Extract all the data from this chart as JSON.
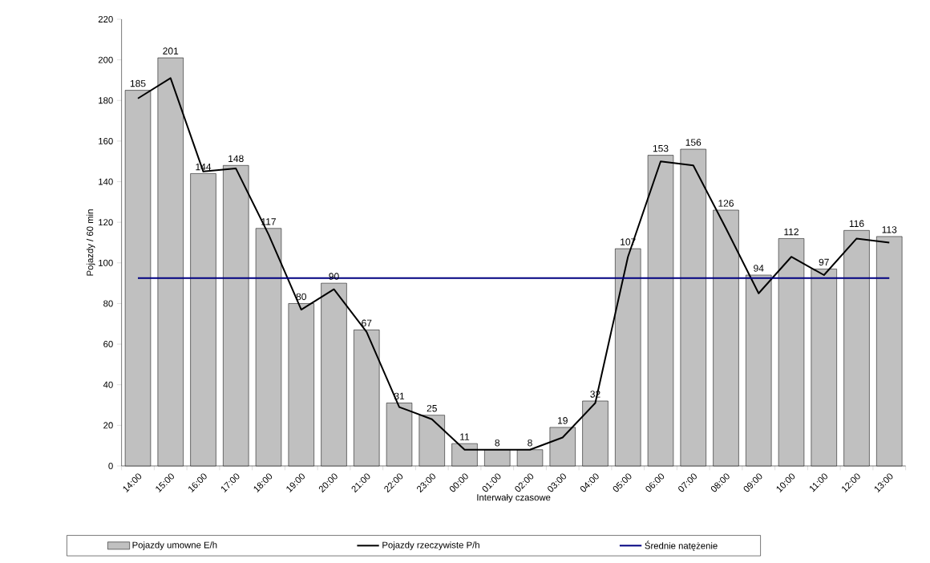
{
  "chart_data": {
    "type": "bar",
    "xlabel": "Interwały czasowe",
    "ylabel": "Pojazdy / 60 min",
    "categories": [
      "14:00",
      "15:00",
      "16:00",
      "17:00",
      "18:00",
      "19:00",
      "20:00",
      "21:00",
      "22:00",
      "23:00",
      "00:00",
      "01:00",
      "02:00",
      "03:00",
      "04:00",
      "05:00",
      "06:00",
      "07:00",
      "08:00",
      "09:00",
      "10:00",
      "11:00",
      "12:00",
      "13:00"
    ],
    "series": [
      {
        "name": "Pojazdy umowne E/h",
        "color": "#c0c0c0",
        "data_labels": true,
        "values": [
          185,
          201,
          144,
          148,
          117,
          80,
          90,
          67,
          31,
          25,
          11,
          8,
          8,
          19,
          32,
          107,
          153,
          156,
          126,
          94,
          112,
          97,
          116,
          113
        ]
      },
      {
        "name": "Pojazdy rzeczywiste P/h",
        "type": "line",
        "color": "#000000",
        "values": [
          181,
          191,
          145,
          146.5,
          114,
          77,
          87,
          66,
          29,
          23,
          8,
          8,
          8,
          14,
          31,
          103,
          150,
          148,
          117,
          85,
          103,
          94,
          112,
          110
        ]
      },
      {
        "name": "Średnie natężenie",
        "type": "line",
        "color": "#000080",
        "values": [
          92.5,
          92.5,
          92.5,
          92.5,
          92.5,
          92.5,
          92.5,
          92.5,
          92.5,
          92.5,
          92.5,
          92.5,
          92.5,
          92.5,
          92.5,
          92.5,
          92.5,
          92.5,
          92.5,
          92.5,
          92.5,
          92.5,
          92.5,
          92.5
        ]
      }
    ],
    "ylim": [
      0,
      220
    ],
    "yticks": [
      0,
      20,
      40,
      60,
      80,
      100,
      120,
      140,
      160,
      180,
      200,
      220
    ],
    "grid": false,
    "legend": "bottom",
    "marker": "none",
    "line_style": "solid"
  }
}
